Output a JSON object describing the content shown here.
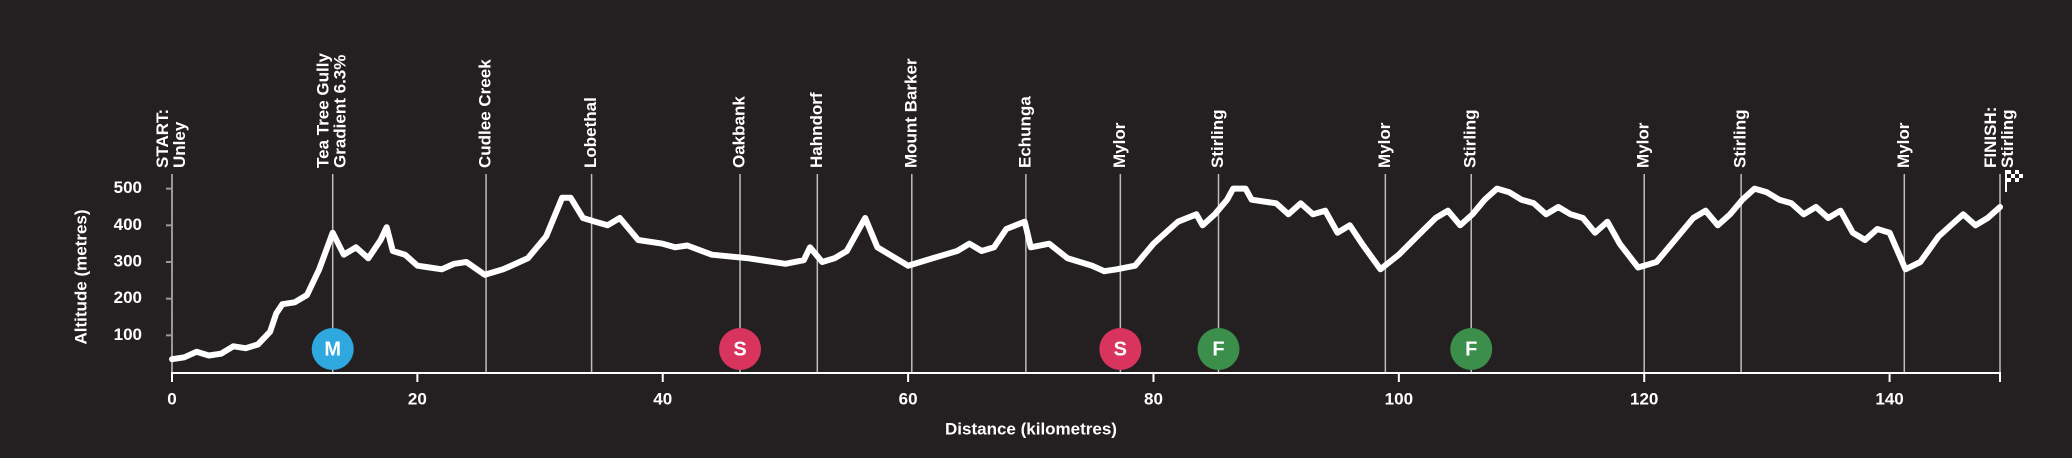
{
  "chart_data": {
    "type": "line",
    "xlabel": "Distance (kilometres)",
    "ylabel": "Altitude (metres)",
    "color": "#ffffff",
    "x": [
      0,
      1,
      2,
      3,
      4,
      5,
      6,
      7,
      8,
      8.5,
      9,
      10,
      11,
      12,
      13.1,
      14,
      15,
      16,
      17,
      17.5,
      18,
      19,
      20,
      21,
      22,
      23,
      24,
      25.5,
      27,
      29,
      30.5,
      31.8,
      32.5,
      33.5,
      34.5,
      35.5,
      36.5,
      38,
      40,
      41,
      42,
      44,
      47,
      50,
      51.5,
      52,
      53,
      54,
      55,
      56,
      56.5,
      57.5,
      58.5,
      60,
      62,
      64,
      65,
      66,
      67,
      68,
      69.5,
      70,
      71.5,
      73,
      75,
      76,
      77,
      78.5,
      80,
      81,
      82,
      83.5,
      84,
      85,
      86,
      86.5,
      87.5,
      88,
      90,
      91,
      92,
      93,
      94,
      95,
      96,
      97,
      98.5,
      100,
      101.5,
      103,
      104,
      105,
      106,
      107,
      108,
      109,
      110,
      111,
      112,
      113,
      114,
      115,
      116,
      117,
      118,
      119.5,
      121,
      122.5,
      124,
      125,
      126,
      127,
      128,
      129,
      130,
      131,
      132,
      133,
      134,
      135,
      136,
      137,
      138,
      139,
      140,
      141.3,
      142.5,
      144,
      145,
      146,
      147,
      148,
      149
    ],
    "values": [
      35,
      40,
      55,
      45,
      50,
      70,
      65,
      75,
      110,
      160,
      185,
      190,
      210,
      280,
      380,
      320,
      340,
      310,
      360,
      395,
      330,
      320,
      290,
      285,
      280,
      295,
      300,
      265,
      280,
      310,
      370,
      475,
      475,
      420,
      410,
      400,
      420,
      360,
      350,
      340,
      345,
      320,
      310,
      295,
      305,
      340,
      300,
      310,
      330,
      390,
      420,
      340,
      320,
      290,
      310,
      330,
      350,
      330,
      340,
      390,
      410,
      340,
      350,
      310,
      290,
      275,
      280,
      290,
      350,
      380,
      410,
      430,
      400,
      430,
      470,
      500,
      500,
      470,
      460,
      430,
      460,
      430,
      440,
      380,
      400,
      350,
      280,
      320,
      370,
      420,
      440,
      400,
      430,
      470,
      500,
      490,
      470,
      460,
      430,
      450,
      430,
      420,
      380,
      410,
      350,
      285,
      300,
      360,
      420,
      440,
      400,
      430,
      470,
      500,
      490,
      470,
      460,
      430,
      450,
      420,
      440,
      380,
      360,
      390,
      380,
      280,
      300,
      370,
      400,
      430,
      400,
      420,
      450
    ],
    "xlim": [
      0,
      149
    ],
    "ylim": [
      0,
      520
    ],
    "xticks": [
      0,
      20,
      40,
      60,
      80,
      100,
      120,
      140
    ],
    "yticks": [
      100,
      200,
      300,
      400,
      500
    ],
    "annotations": [
      {
        "x": 0,
        "lines": [
          "START:",
          "Unley"
        ]
      },
      {
        "x": 13.1,
        "lines": [
          "Tea Tree Gully",
          "Gradient 6.3%"
        ]
      },
      {
        "x": 25.6,
        "lines": [
          "Cudlee Creek"
        ]
      },
      {
        "x": 34.2,
        "lines": [
          "Lobethal"
        ]
      },
      {
        "x": 46.3,
        "lines": [
          "Oakbank"
        ]
      },
      {
        "x": 52.6,
        "lines": [
          "Hahndorf"
        ]
      },
      {
        "x": 60.3,
        "lines": [
          "Mount Barker"
        ]
      },
      {
        "x": 69.6,
        "lines": [
          "Echunga"
        ]
      },
      {
        "x": 77.3,
        "lines": [
          "Mylor"
        ]
      },
      {
        "x": 85.3,
        "lines": [
          "Stirling"
        ]
      },
      {
        "x": 98.9,
        "lines": [
          "Mylor"
        ]
      },
      {
        "x": 105.9,
        "lines": [
          "Stirling"
        ]
      },
      {
        "x": 120,
        "lines": [
          "Mylor"
        ]
      },
      {
        "x": 127.9,
        "lines": [
          "Stirling"
        ]
      },
      {
        "x": 141.2,
        "lines": [
          "Mylor"
        ]
      },
      {
        "x": 149,
        "lines": [
          "FINISH:",
          "Stirling"
        ]
      }
    ],
    "markers": [
      {
        "x": 13.1,
        "label": "M",
        "color": "#2ea8df"
      },
      {
        "x": 46.3,
        "label": "S",
        "color": "#d8345e"
      },
      {
        "x": 77.3,
        "label": "S",
        "color": "#d8345e"
      },
      {
        "x": 85.3,
        "label": "F",
        "color": "#3b8f4a"
      },
      {
        "x": 105.9,
        "label": "F",
        "color": "#3b8f4a"
      }
    ]
  }
}
